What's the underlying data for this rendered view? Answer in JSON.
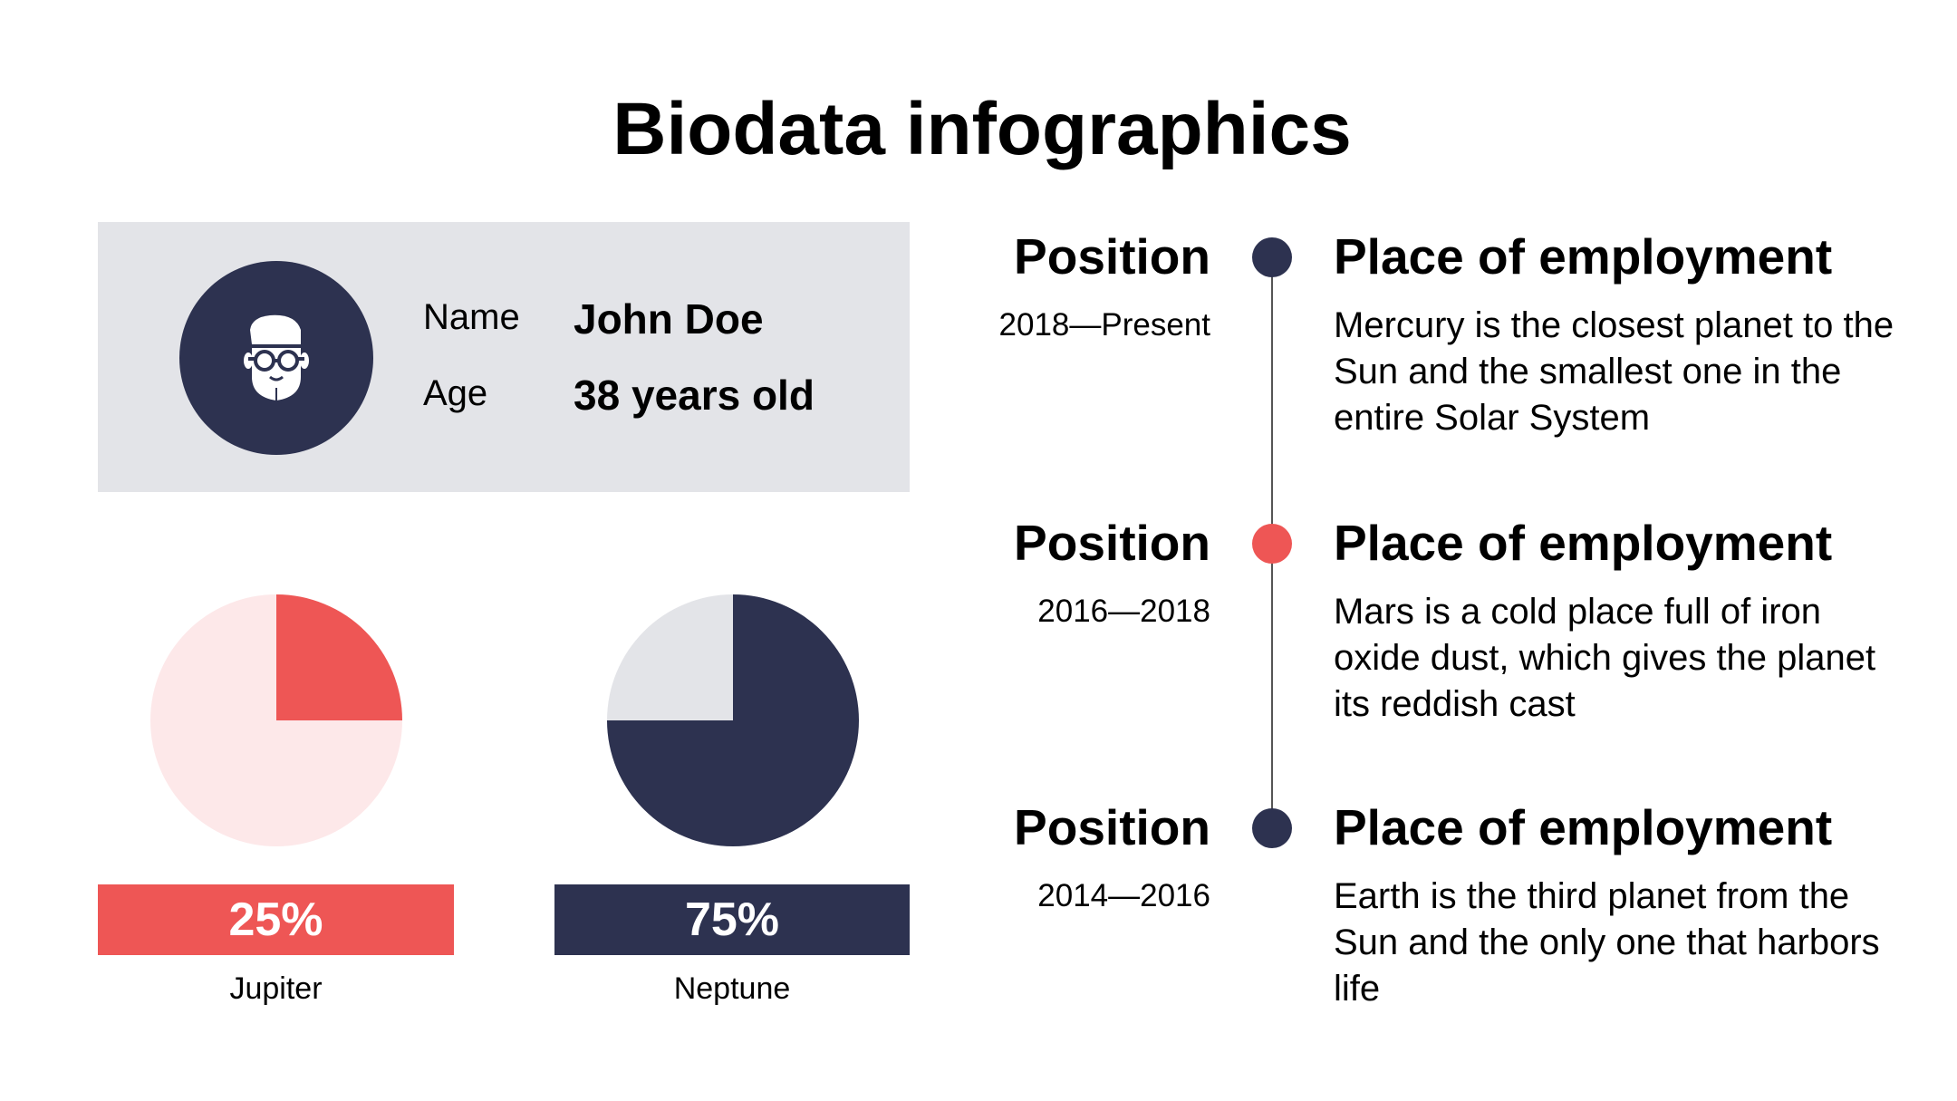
{
  "title": "Biodata infographics",
  "colors": {
    "navy": "#2d3250",
    "red": "#ee5655",
    "pink": "#fde8e9",
    "gray": "#e3e4e8"
  },
  "profile": {
    "avatar_icon": "man-with-glasses-icon",
    "name_label": "Name",
    "name_value": "John Doe",
    "age_label": "Age",
    "age_value": "38 years old"
  },
  "chart_data": [
    {
      "type": "pie",
      "title": "Jupiter",
      "values": [
        25,
        75
      ],
      "label": "25%",
      "colors": [
        "#ee5655",
        "#fde8e9"
      ]
    },
    {
      "type": "pie",
      "title": "Neptune",
      "values": [
        75,
        25
      ],
      "label": "75%",
      "colors": [
        "#2d3250",
        "#e3e4e8"
      ]
    }
  ],
  "timeline": [
    {
      "position": "Position",
      "dates": "2018—Present",
      "place": "Place of employment",
      "description": "Mercury is the closest planet to the Sun and the smallest one in the entire Solar System",
      "dot_color": "#2d3250"
    },
    {
      "position": "Position",
      "dates": "2016—2018",
      "place": "Place of employment",
      "description": "Mars is a cold place full of iron oxide dust, which gives the planet its reddish cast",
      "dot_color": "#ee5655"
    },
    {
      "position": "Position",
      "dates": "2014—2016",
      "place": "Place of employment",
      "description": "Earth is the third planet from the Sun and the only one that harbors life",
      "dot_color": "#2d3250"
    }
  ]
}
